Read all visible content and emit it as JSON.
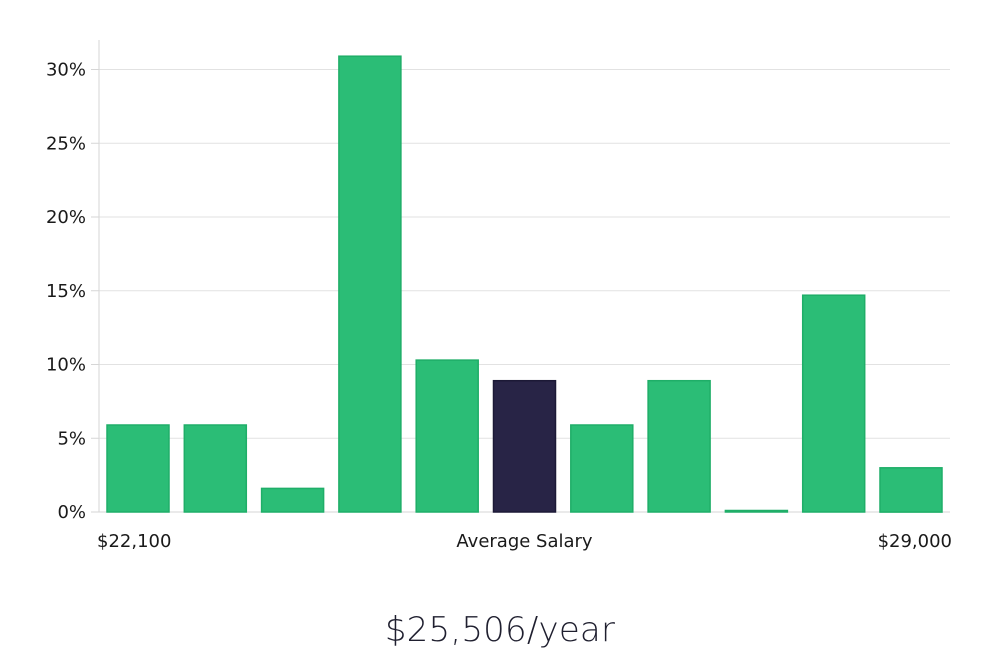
{
  "chart_data": {
    "type": "bar",
    "values": [
      5.9,
      5.9,
      1.6,
      30.9,
      10.3,
      8.9,
      5.9,
      8.9,
      0.1,
      14.7,
      3.0
    ],
    "highlight_index": 5,
    "ylim": [
      0,
      32
    ],
    "y_ticks": [
      {
        "value": 0,
        "label": "0%"
      },
      {
        "value": 5,
        "label": "5%"
      },
      {
        "value": 10,
        "label": "10%"
      },
      {
        "value": 15,
        "label": "15%"
      },
      {
        "value": 20,
        "label": "20%"
      },
      {
        "value": 25,
        "label": "25%"
      },
      {
        "value": 30,
        "label": "30%"
      }
    ],
    "x_labels": {
      "min": "$22,100",
      "center": "Average Salary",
      "max": "$29,000"
    },
    "grid": true,
    "colors": {
      "bar": "#2bbd76",
      "bar_stroke": "#1fae68",
      "highlight": "#282446",
      "grid": "#e2e2e2",
      "axis": "#d6d6d6"
    }
  },
  "summary": {
    "salary": "$25,506/year"
  }
}
